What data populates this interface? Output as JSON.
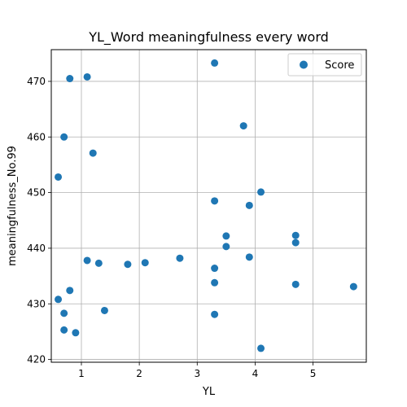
{
  "chart_data": {
    "type": "scatter",
    "title": "YL_Word meaningfulness every word",
    "xlabel": "YL",
    "ylabel": "meaningfulness_No.99",
    "xlim": [
      0.48,
      5.92
    ],
    "ylim": [
      419.5,
      475.7
    ],
    "xticks": [
      1,
      2,
      3,
      4,
      5
    ],
    "yticks": [
      420,
      430,
      440,
      450,
      460,
      470
    ],
    "grid": true,
    "legend_position": "top-right",
    "colors": {
      "series": "#1f77b4",
      "grid": "#b0b0b0"
    },
    "series": [
      {
        "name": "Score",
        "points": [
          {
            "x": 0.6,
            "y": 452.8
          },
          {
            "x": 0.6,
            "y": 430.8
          },
          {
            "x": 0.7,
            "y": 460.0
          },
          {
            "x": 0.7,
            "y": 428.3
          },
          {
            "x": 0.7,
            "y": 425.3
          },
          {
            "x": 0.8,
            "y": 470.5
          },
          {
            "x": 0.8,
            "y": 432.4
          },
          {
            "x": 0.9,
            "y": 424.8
          },
          {
            "x": 1.1,
            "y": 470.8
          },
          {
            "x": 1.1,
            "y": 437.8
          },
          {
            "x": 1.2,
            "y": 457.1
          },
          {
            "x": 1.3,
            "y": 437.3
          },
          {
            "x": 1.4,
            "y": 428.8
          },
          {
            "x": 1.8,
            "y": 437.1
          },
          {
            "x": 2.1,
            "y": 437.4
          },
          {
            "x": 2.7,
            "y": 438.2
          },
          {
            "x": 3.3,
            "y": 473.3
          },
          {
            "x": 3.3,
            "y": 448.5
          },
          {
            "x": 3.3,
            "y": 436.4
          },
          {
            "x": 3.3,
            "y": 433.8
          },
          {
            "x": 3.3,
            "y": 428.1
          },
          {
            "x": 3.5,
            "y": 442.2
          },
          {
            "x": 3.5,
            "y": 440.3
          },
          {
            "x": 3.8,
            "y": 462.0
          },
          {
            "x": 3.9,
            "y": 447.7
          },
          {
            "x": 3.9,
            "y": 438.4
          },
          {
            "x": 4.1,
            "y": 450.1
          },
          {
            "x": 4.1,
            "y": 422.0
          },
          {
            "x": 4.7,
            "y": 442.3
          },
          {
            "x": 4.7,
            "y": 441.0
          },
          {
            "x": 4.7,
            "y": 433.5
          },
          {
            "x": 5.7,
            "y": 433.1
          }
        ]
      }
    ]
  }
}
